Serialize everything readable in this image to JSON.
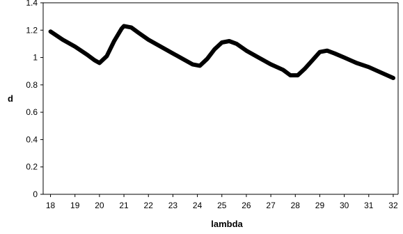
{
  "chart_data": {
    "type": "line",
    "title": "",
    "xlabel": "lambda",
    "ylabel": "d",
    "xlim": [
      17.7,
      32.2
    ],
    "ylim": [
      0,
      1.4
    ],
    "x_ticks": [
      18,
      19,
      20,
      21,
      22,
      23,
      24,
      25,
      26,
      27,
      28,
      29,
      30,
      31,
      32
    ],
    "y_ticks": [
      0,
      0.2,
      0.4,
      0.6,
      0.8,
      1,
      1.2,
      1.4
    ],
    "y_tick_labels": [
      "0",
      "0.2",
      "0.4",
      "0.6",
      "0.8",
      "1",
      "1.2",
      "1.4"
    ],
    "grid": false,
    "legend": "none",
    "series": [
      {
        "color": "#000000",
        "x": [
          18,
          18.5,
          19,
          19.5,
          19.8,
          20,
          20.3,
          20.6,
          20.9,
          21,
          21.3,
          21.6,
          22,
          22.5,
          23,
          23.5,
          23.8,
          24.1,
          24.4,
          24.7,
          25,
          25.3,
          25.6,
          26,
          26.5,
          27,
          27.5,
          27.8,
          28.1,
          28.4,
          28.7,
          29,
          29.3,
          29.6,
          30,
          30.5,
          31,
          31.5,
          32
        ],
        "y": [
          1.19,
          1.13,
          1.08,
          1.02,
          0.98,
          0.96,
          1.01,
          1.12,
          1.21,
          1.23,
          1.22,
          1.18,
          1.13,
          1.08,
          1.03,
          0.98,
          0.95,
          0.94,
          0.99,
          1.06,
          1.11,
          1.12,
          1.1,
          1.05,
          1.0,
          0.95,
          0.91,
          0.87,
          0.87,
          0.92,
          0.98,
          1.04,
          1.05,
          1.03,
          1.0,
          0.96,
          0.93,
          0.89,
          0.85
        ]
      }
    ]
  }
}
